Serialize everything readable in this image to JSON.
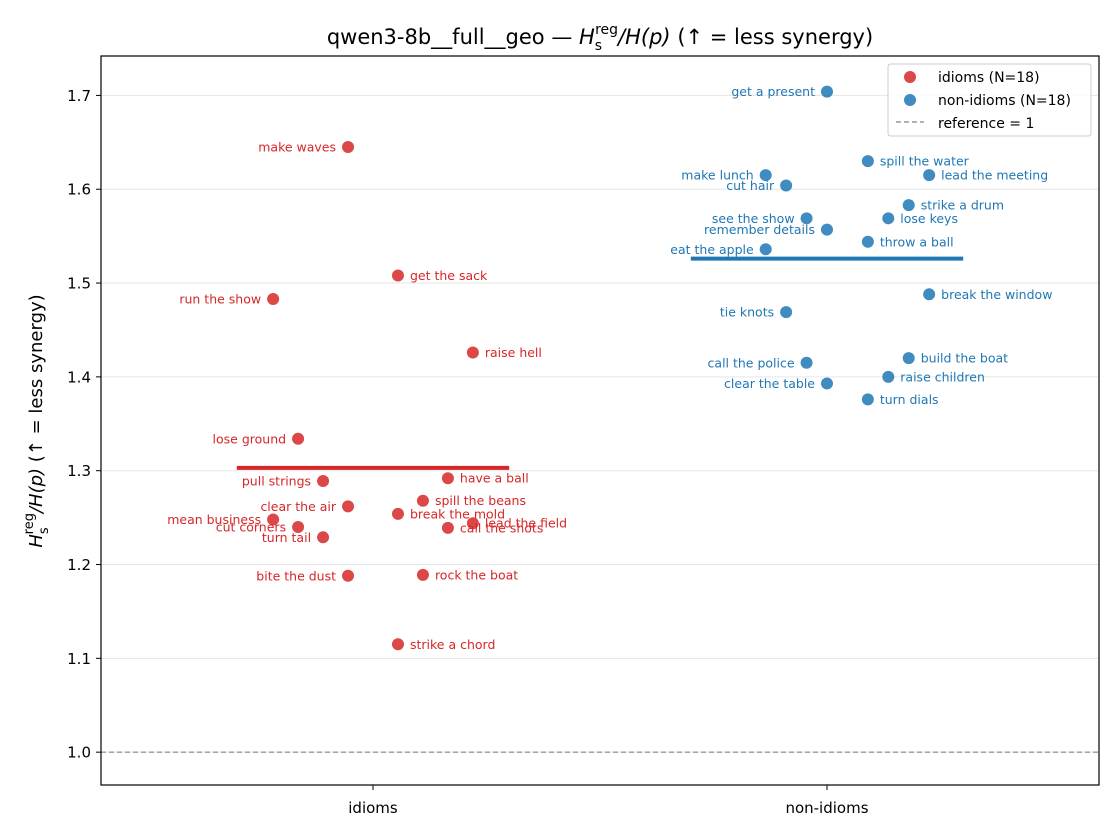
{
  "chart_data": {
    "type": "scatter",
    "title": {
      "prefix": "qwen3-8b__full__geo — ",
      "math_H": "H",
      "math_sub": "s",
      "math_sup": "reg",
      "math_rest": "/H(p)",
      "suffix": "  (↑ = less synergy)"
    },
    "ylabel": {
      "math_H": "H",
      "math_sub": "s",
      "math_sup": "reg",
      "math_rest": "/H(p)",
      "suffix": "  (↑ = less synergy)"
    },
    "categories": [
      "idioms",
      "non-idioms"
    ],
    "ylim": [
      0.965,
      1.742
    ],
    "yticks": [
      "1.0",
      "1.1",
      "1.2",
      "1.3",
      "1.4",
      "1.5",
      "1.6",
      "1.7"
    ],
    "grid": "horizontal",
    "legend_placement": "top-right",
    "reference": {
      "value": 1.0,
      "label": "reference = 1"
    },
    "series": [
      {
        "name": "idioms (N=18)",
        "category": "idioms",
        "color": "#d62728",
        "mean": 1.303,
        "points": [
          {
            "label": "make waves",
            "x": -0.055,
            "y": 1.645,
            "side": "left"
          },
          {
            "label": "get the sack",
            "x": 0.055,
            "y": 1.508,
            "side": "right"
          },
          {
            "label": "run the show",
            "x": -0.22,
            "y": 1.483,
            "side": "left"
          },
          {
            "label": "raise hell",
            "x": 0.22,
            "y": 1.426,
            "side": "right"
          },
          {
            "label": "lose ground",
            "x": -0.165,
            "y": 1.334,
            "side": "left"
          },
          {
            "label": "have a ball",
            "x": 0.165,
            "y": 1.292,
            "side": "right"
          },
          {
            "label": "pull strings",
            "x": -0.11,
            "y": 1.289,
            "side": "left"
          },
          {
            "label": "spill the beans",
            "x": 0.11,
            "y": 1.268,
            "side": "right"
          },
          {
            "label": "clear the air",
            "x": -0.055,
            "y": 1.262,
            "side": "left"
          },
          {
            "label": "break the mold",
            "x": 0.055,
            "y": 1.254,
            "side": "right"
          },
          {
            "label": "mean business",
            "x": -0.22,
            "y": 1.248,
            "side": "left"
          },
          {
            "label": "lead the field",
            "x": 0.22,
            "y": 1.244,
            "side": "right"
          },
          {
            "label": "cut corners",
            "x": -0.165,
            "y": 1.24,
            "side": "left"
          },
          {
            "label": "call the shots",
            "x": 0.165,
            "y": 1.239,
            "side": "right"
          },
          {
            "label": "turn tail",
            "x": -0.11,
            "y": 1.229,
            "side": "left"
          },
          {
            "label": "rock the boat",
            "x": 0.11,
            "y": 1.189,
            "side": "right"
          },
          {
            "label": "bite the dust",
            "x": -0.055,
            "y": 1.188,
            "side": "left"
          },
          {
            "label": "strike a chord",
            "x": 0.055,
            "y": 1.115,
            "side": "right"
          }
        ]
      },
      {
        "name": "non-idioms (N=18)",
        "category": "non-idioms",
        "color": "#1f77b4",
        "mean": 1.526,
        "points": [
          {
            "label": "get a present",
            "x": 0.0,
            "y": 1.704,
            "side": "left"
          },
          {
            "label": "spill the water",
            "x": 0.09,
            "y": 1.63,
            "side": "right"
          },
          {
            "label": "make lunch",
            "x": -0.135,
            "y": 1.615,
            "side": "left"
          },
          {
            "label": "lead the meeting",
            "x": 0.225,
            "y": 1.615,
            "side": "right"
          },
          {
            "label": "cut hair",
            "x": -0.09,
            "y": 1.604,
            "side": "left"
          },
          {
            "label": "strike a drum",
            "x": 0.18,
            "y": 1.583,
            "side": "right"
          },
          {
            "label": "see the show",
            "x": -0.045,
            "y": 1.569,
            "side": "left"
          },
          {
            "label": "lose keys",
            "x": 0.135,
            "y": 1.569,
            "side": "right"
          },
          {
            "label": "remember details",
            "x": 0.0,
            "y": 1.557,
            "side": "left"
          },
          {
            "label": "throw a ball",
            "x": 0.09,
            "y": 1.544,
            "side": "right"
          },
          {
            "label": "eat the apple",
            "x": -0.135,
            "y": 1.536,
            "side": "left"
          },
          {
            "label": "break the window",
            "x": 0.225,
            "y": 1.488,
            "side": "right"
          },
          {
            "label": "tie knots",
            "x": -0.09,
            "y": 1.469,
            "side": "left"
          },
          {
            "label": "build the boat",
            "x": 0.18,
            "y": 1.42,
            "side": "right"
          },
          {
            "label": "call the police",
            "x": -0.045,
            "y": 1.415,
            "side": "left"
          },
          {
            "label": "raise children",
            "x": 0.135,
            "y": 1.4,
            "side": "right"
          },
          {
            "label": "clear the table",
            "x": 0.0,
            "y": 1.393,
            "side": "left"
          },
          {
            "label": "turn dials",
            "x": 0.09,
            "y": 1.376,
            "side": "right"
          }
        ]
      }
    ]
  }
}
